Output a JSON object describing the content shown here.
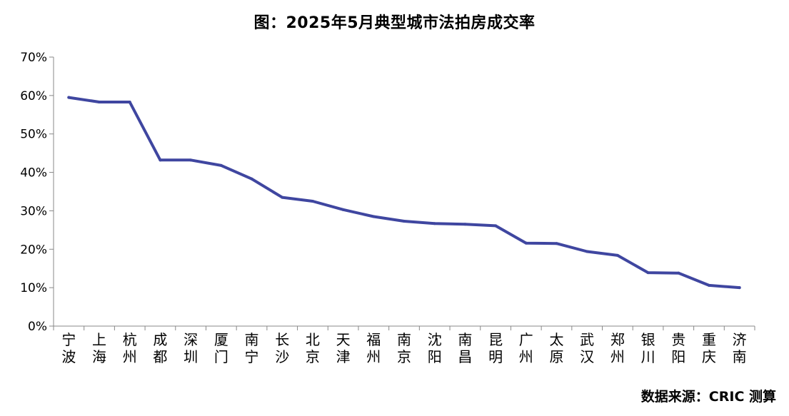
{
  "title": "图：2025年5月典型城市法拍房成交率",
  "source": "数据来源：CRIC 测算",
  "chart_data": {
    "type": "line",
    "title": "图：2025年5月典型城市法拍房成交率",
    "xlabel": "",
    "ylabel": "",
    "ylim": [
      0,
      70
    ],
    "yticks": [
      "0%",
      "10%",
      "20%",
      "30%",
      "40%",
      "50%",
      "60%",
      "70%"
    ],
    "grid": false,
    "line_color": "#3F46A0",
    "categories": [
      "宁波",
      "上海",
      "杭州",
      "成都",
      "深圳",
      "厦门",
      "南宁",
      "长沙",
      "北京",
      "天津",
      "福州",
      "南京",
      "沈阳",
      "南昌",
      "昆明",
      "广州",
      "太原",
      "武汉",
      "郑州",
      "银川",
      "贵阳",
      "重庆",
      "济南"
    ],
    "values": [
      59.5,
      58.3,
      58.3,
      43.2,
      43.2,
      41.8,
      38.3,
      33.5,
      32.5,
      30.3,
      28.5,
      27.3,
      26.7,
      26.5,
      26.1,
      21.6,
      21.5,
      19.4,
      18.4,
      13.9,
      13.8,
      10.6,
      10.0
    ]
  }
}
